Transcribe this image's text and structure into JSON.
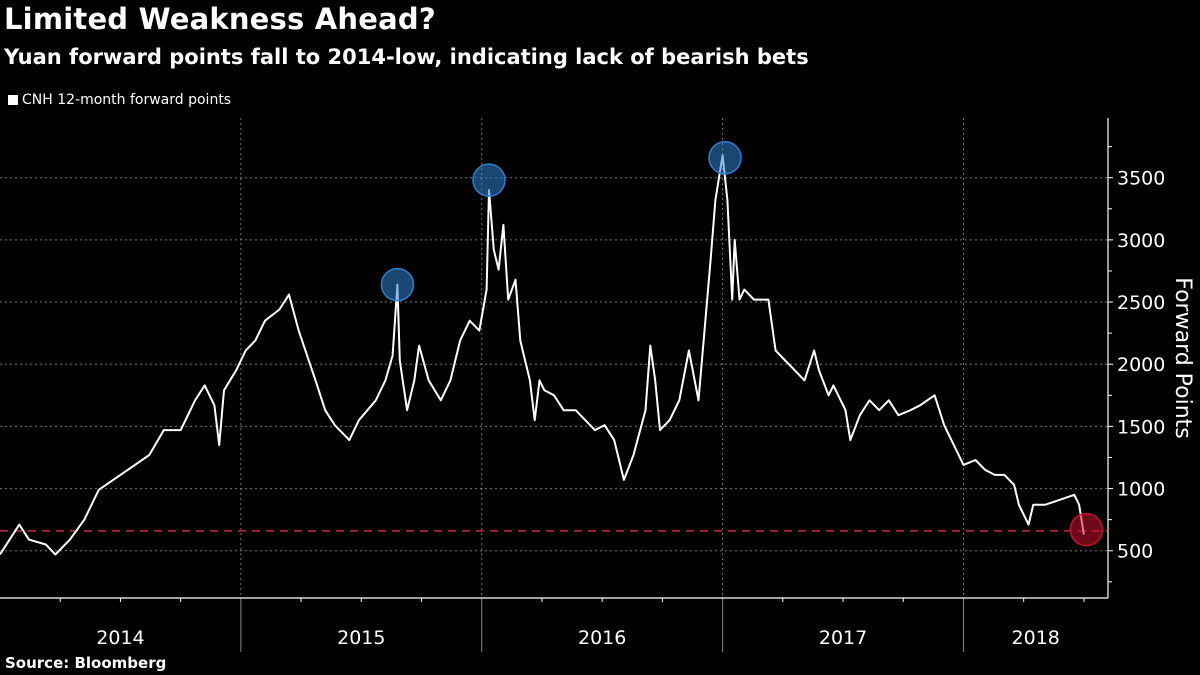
{
  "chart_data": {
    "type": "line",
    "title": "Limited Weakness Ahead?",
    "subtitle": "Yuan forward points fall to 2014-low, indicating lack of bearish bets",
    "legend": [
      "CNH 12-month forward points"
    ],
    "legend_placement": "top-left",
    "ylabel": "Forward Points",
    "xlabel": "",
    "ylim": [
      120,
      3980
    ],
    "xlim": [
      2014.0,
      2018.6
    ],
    "yticks": [
      500,
      1000,
      1500,
      2000,
      2500,
      3000,
      3500
    ],
    "xtick_labels": [
      {
        "label": "2014",
        "center": 2014.5
      },
      {
        "label": "2015",
        "center": 2015.5
      },
      {
        "label": "2016",
        "center": 2016.5
      },
      {
        "label": "2017",
        "center": 2017.5
      },
      {
        "label": "2018",
        "center": 2018.3
      }
    ],
    "year_boundaries": [
      2015,
      2016,
      2017,
      2018
    ],
    "grid": true,
    "reference_line": {
      "value": 660,
      "style": "dashed",
      "color": "#e8324a"
    },
    "highlights": [
      {
        "x": 2015.65,
        "y": 2640,
        "color": "#2f7fd0"
      },
      {
        "x": 2016.03,
        "y": 3480,
        "color": "#2f7fd0"
      },
      {
        "x": 2017.01,
        "y": 3660,
        "color": "#2f7fd0"
      },
      {
        "x": 2018.51,
        "y": 670,
        "color": "#c8102e"
      }
    ],
    "series": [
      {
        "name": "CNH 12-month forward points",
        "color": "#ffffff",
        "x": [
          2014.0,
          2014.08,
          2014.12,
          2014.19,
          2014.23,
          2014.29,
          2014.35,
          2014.41,
          2014.5,
          2014.56,
          2014.62,
          2014.68,
          2014.75,
          2014.81,
          2014.85,
          2014.89,
          2014.91,
          2014.93,
          2014.98,
          2015.02,
          2015.06,
          2015.1,
          2015.16,
          2015.2,
          2015.24,
          2015.31,
          2015.35,
          2015.39,
          2015.45,
          2015.49,
          2015.56,
          2015.6,
          2015.63,
          2015.65,
          2015.66,
          2015.69,
          2015.72,
          2015.74,
          2015.78,
          2015.83,
          2015.87,
          2015.91,
          2015.95,
          2015.99,
          2016.02,
          2016.03,
          2016.05,
          2016.07,
          2016.09,
          2016.11,
          2016.14,
          2016.16,
          2016.2,
          2016.22,
          2016.24,
          2016.26,
          2016.3,
          2016.34,
          2016.39,
          2016.43,
          2016.47,
          2016.51,
          2016.55,
          2016.59,
          2016.63,
          2016.68,
          2016.7,
          2016.72,
          2016.74,
          2016.78,
          2016.82,
          2016.86,
          2016.9,
          2016.95,
          2016.97,
          2016.99,
          2017.0,
          2017.02,
          2017.04,
          2017.05,
          2017.07,
          2017.09,
          2017.13,
          2017.19,
          2017.22,
          2017.26,
          2017.3,
          2017.34,
          2017.38,
          2017.4,
          2017.44,
          2017.46,
          2017.51,
          2017.53,
          2017.57,
          2017.61,
          2017.65,
          2017.69,
          2017.73,
          2017.78,
          2017.82,
          2017.88,
          2017.92,
          2017.96,
          2018.0,
          2018.05,
          2018.09,
          2018.13,
          2018.17,
          2018.21,
          2018.23,
          2018.27,
          2018.29,
          2018.31,
          2018.34,
          2018.4,
          2018.46,
          2018.48,
          2018.5
        ],
        "y": [
          470,
          710,
          590,
          550,
          470,
          590,
          750,
          990,
          1110,
          1190,
          1270,
          1470,
          1470,
          1710,
          1830,
          1670,
          1350,
          1790,
          1950,
          2110,
          2190,
          2350,
          2440,
          2560,
          2270,
          1870,
          1630,
          1510,
          1390,
          1550,
          1710,
          1870,
          2070,
          2640,
          2030,
          1630,
          1870,
          2150,
          1870,
          1710,
          1870,
          2190,
          2350,
          2270,
          2600,
          3400,
          2920,
          2760,
          3120,
          2520,
          2680,
          2190,
          1870,
          1550,
          1870,
          1790,
          1750,
          1630,
          1630,
          1550,
          1470,
          1510,
          1390,
          1070,
          1270,
          1630,
          2150,
          1870,
          1470,
          1550,
          1710,
          2110,
          1710,
          2840,
          3320,
          3560,
          3680,
          3320,
          2520,
          3000,
          2520,
          2600,
          2520,
          2520,
          2110,
          2030,
          1950,
          1870,
          2110,
          1950,
          1750,
          1830,
          1630,
          1390,
          1590,
          1710,
          1630,
          1710,
          1590,
          1630,
          1670,
          1750,
          1510,
          1350,
          1190,
          1230,
          1150,
          1110,
          1110,
          1030,
          870,
          710,
          870,
          870,
          870,
          910,
          950,
          870,
          630
        ]
      }
    ],
    "source": "Source:  Bloomberg"
  }
}
